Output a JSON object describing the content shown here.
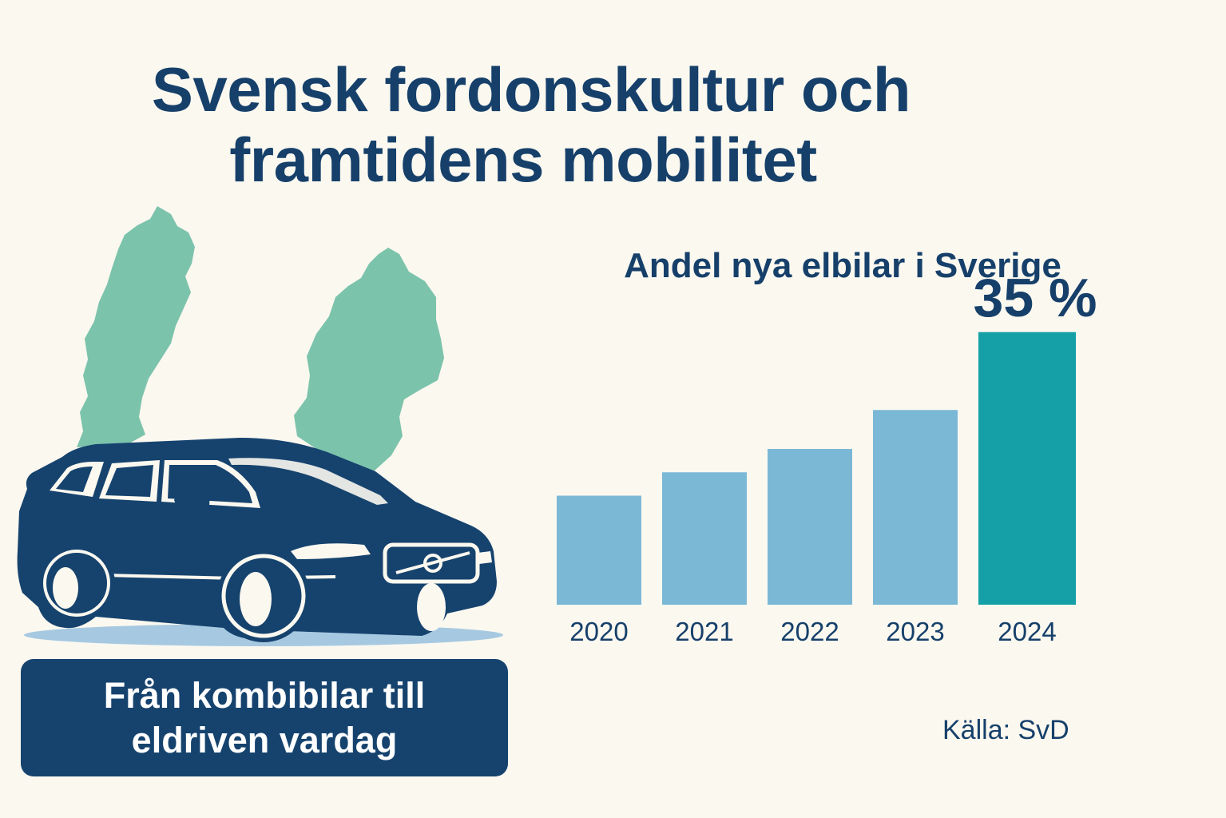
{
  "title": {
    "line1": "Svensk fordonskultur och",
    "line2": "framtidens mobilitet"
  },
  "caption": {
    "line1": "Från kombibilar till",
    "line2": "eldriven vardag"
  },
  "source": "Källa: SvD",
  "colors": {
    "title": "#16406a",
    "bar": "#7bb8d6",
    "bar_highlight": "#14a0a6",
    "map": "#7cc3ac",
    "car": "#16436e",
    "caption_bg": "#16436e"
  },
  "chart_data": {
    "type": "bar",
    "title": "Andel nya elbilar i Sverige",
    "categories": [
      "2020",
      "2021",
      "2022",
      "2023",
      "2024"
    ],
    "values": [
      14,
      17,
      20,
      25,
      35
    ],
    "unit": "%",
    "highlight_index": 4,
    "highlight_label": "35 %",
    "ylim": [
      0,
      40
    ],
    "grid": false,
    "legend": "none"
  }
}
